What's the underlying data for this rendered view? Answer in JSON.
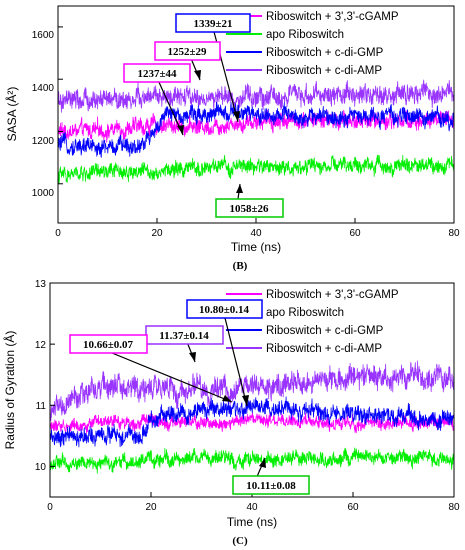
{
  "chart_data": [
    {
      "type": "line",
      "panel_label": "(B)",
      "xlabel": "Time (ns)",
      "ylabel": "SASA (Å²)",
      "xlim": [
        0,
        80
      ],
      "ylim": [
        850,
        1680
      ],
      "x_ticks": [
        "0",
        "20",
        "40",
        "60",
        "80"
      ],
      "y_ticks": [
        "1000",
        "1200",
        "1400",
        "1600"
      ],
      "grid": false,
      "legend_position": "top-right",
      "series": [
        {
          "name": "Riboswitch + 3',3'-cGAMP",
          "color": "#ff00ff",
          "x": [
            0,
            10,
            20,
            30,
            40,
            50,
            60,
            70,
            80
          ],
          "values": [
            1200,
            1205,
            1225,
            1220,
            1240,
            1245,
            1240,
            1245,
            1240
          ]
        },
        {
          "name": "apo Riboswitch",
          "color": "#00ee00",
          "x": [
            0,
            10,
            20,
            30,
            40,
            50,
            60,
            70,
            80
          ],
          "values": [
            1030,
            1045,
            1050,
            1060,
            1065,
            1065,
            1070,
            1070,
            1075
          ]
        },
        {
          "name": "Riboswitch + c-di-GMP",
          "color": "#0000ff",
          "x": [
            0,
            10,
            17,
            20,
            22,
            30,
            40,
            50,
            60,
            70,
            80
          ],
          "values": [
            1150,
            1140,
            1150,
            1220,
            1260,
            1270,
            1265,
            1255,
            1260,
            1255,
            1250
          ]
        },
        {
          "name": "Riboswitch + c-di-AMP",
          "color": "#9933ff",
          "x": [
            0,
            10,
            20,
            30,
            40,
            50,
            60,
            70,
            80
          ],
          "values": [
            1310,
            1320,
            1330,
            1325,
            1330,
            1335,
            1345,
            1340,
            1340
          ]
        }
      ],
      "annotations": [
        {
          "text": "1339±21",
          "box_color": "#0000ff"
        },
        {
          "text": "1252±29",
          "box_color": "#ff00ff"
        },
        {
          "text": "1237±44",
          "box_color": "#ff00ff"
        },
        {
          "text": "1058±26",
          "box_color": "#00cc00"
        }
      ]
    },
    {
      "type": "line",
      "panel_label": "(C)",
      "xlabel": "Time (ns)",
      "ylabel": "Radius of Gyration (Å)",
      "xlim": [
        0,
        80
      ],
      "ylim": [
        9.5,
        13
      ],
      "x_ticks": [
        "0",
        "20",
        "40",
        "60",
        "80"
      ],
      "y_ticks": [
        "10",
        "11",
        "12",
        "13"
      ],
      "grid": false,
      "legend_position": "top-right",
      "series": [
        {
          "name": "Riboswitch + 3',3'-cGAMP",
          "color": "#ff00ff",
          "x": [
            0,
            10,
            20,
            30,
            40,
            50,
            60,
            70,
            80
          ],
          "values": [
            10.65,
            10.7,
            10.75,
            10.7,
            10.75,
            10.72,
            10.7,
            10.72,
            10.7
          ]
        },
        {
          "name": "apo Riboswitch",
          "color": "#00ee00",
          "x": [
            0,
            10,
            20,
            30,
            40,
            50,
            60,
            70,
            80
          ],
          "values": [
            10.05,
            10.05,
            10.1,
            10.15,
            10.1,
            10.12,
            10.12,
            10.15,
            10.12
          ]
        },
        {
          "name": "Riboswitch + c-di-GMP",
          "color": "#0000ff",
          "x": [
            0,
            10,
            18,
            20,
            22,
            30,
            40,
            50,
            60,
            70,
            80
          ],
          "values": [
            10.45,
            10.5,
            10.5,
            10.75,
            10.85,
            10.9,
            10.95,
            10.9,
            10.85,
            10.8,
            10.75
          ]
        },
        {
          "name": "Riboswitch + c-di-AMP",
          "color": "#9933ff",
          "x": [
            0,
            10,
            20,
            30,
            40,
            50,
            60,
            70,
            80
          ],
          "values": [
            10.9,
            11.3,
            11.3,
            11.25,
            11.3,
            11.4,
            11.45,
            11.5,
            11.45
          ]
        }
      ],
      "annotations": [
        {
          "text": "10.80±0.14",
          "box_color": "#0000ff"
        },
        {
          "text": "11.37±0.14",
          "box_color": "#9933ff"
        },
        {
          "text": "10.66±0.07",
          "box_color": "#ff00ff"
        },
        {
          "text": "10.11±0.08",
          "box_color": "#00cc00"
        }
      ]
    }
  ]
}
